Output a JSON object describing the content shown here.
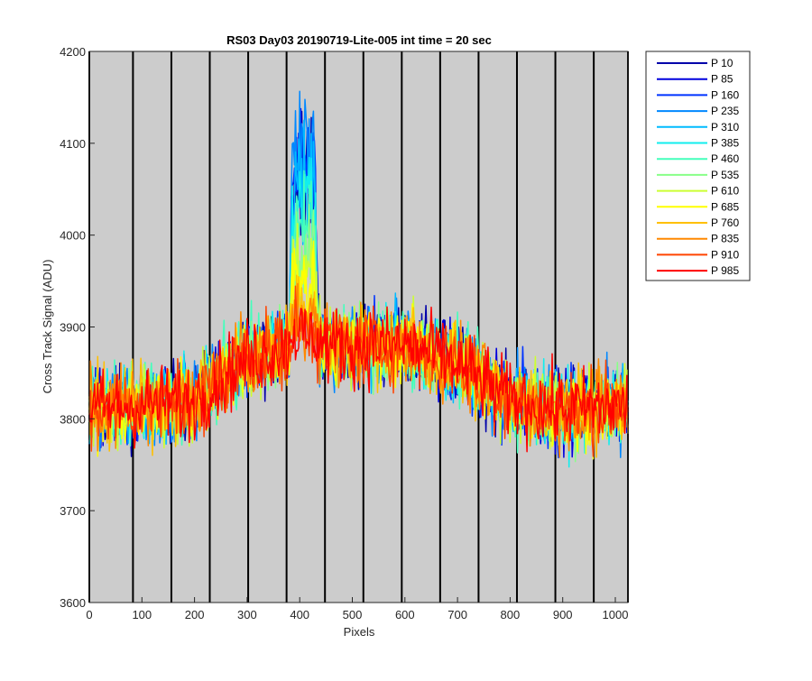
{
  "chart_data": {
    "type": "line",
    "title": "RS03 Day03 20190719-Lite-005 int time = 20 sec",
    "xlabel": "Pixels",
    "ylabel": "Cross Track Signal (ADU)",
    "xlim": [
      0,
      1024
    ],
    "ylim": [
      3600,
      4200
    ],
    "xticks": [
      0,
      100,
      200,
      300,
      400,
      500,
      600,
      700,
      800,
      900,
      1000
    ],
    "yticks": [
      3600,
      3700,
      3800,
      3900,
      4000,
      4100,
      4200
    ],
    "background_color": "#cccccc",
    "grid": false,
    "legend_position": "outside-right",
    "vertical_markers": {
      "color": "#000000",
      "x": [
        0,
        83,
        156,
        229,
        302,
        375,
        448,
        521,
        594,
        667,
        740,
        813,
        886,
        959,
        1024
      ]
    },
    "profile": {
      "description_points_x": [
        0,
        100,
        200,
        250,
        300,
        350,
        375,
        385,
        440,
        450,
        500,
        600,
        650,
        700,
        750,
        800,
        900,
        1024
      ],
      "description_points_y": [
        3810,
        3815,
        3820,
        3845,
        3865,
        3875,
        3880,
        3880,
        3885,
        3880,
        3880,
        3880,
        3870,
        3860,
        3840,
        3820,
        3810,
        3815
      ],
      "noise_amplitude": 40,
      "peak_region": {
        "x_start": 380,
        "x_end": 435
      }
    },
    "series": [
      {
        "name": "P 10",
        "color": "#0000aa",
        "peak": 4170
      },
      {
        "name": "P 85",
        "color": "#0000dd",
        "peak": 4160
      },
      {
        "name": "P 160",
        "color": "#0033ff",
        "peak": 4165
      },
      {
        "name": "P 235",
        "color": "#0088ff",
        "peak": 4190
      },
      {
        "name": "P 310",
        "color": "#00bbff",
        "peak": 4165
      },
      {
        "name": "P 385",
        "color": "#11eeee",
        "peak": 4120
      },
      {
        "name": "P 460",
        "color": "#44ffbb",
        "peak": 4090
      },
      {
        "name": "P 535",
        "color": "#88ff88",
        "peak": 4060
      },
      {
        "name": "P 610",
        "color": "#ccff33",
        "peak": 4040
      },
      {
        "name": "P 685",
        "color": "#ffff00",
        "peak": 4020
      },
      {
        "name": "P 760",
        "color": "#ffc000",
        "peak": 3990
      },
      {
        "name": "P 835",
        "color": "#ff8800",
        "peak": 3970
      },
      {
        "name": "P 910",
        "color": "#ff4400",
        "peak": 3960
      },
      {
        "name": "P 985",
        "color": "#ff0000",
        "peak": 3950
      }
    ]
  }
}
